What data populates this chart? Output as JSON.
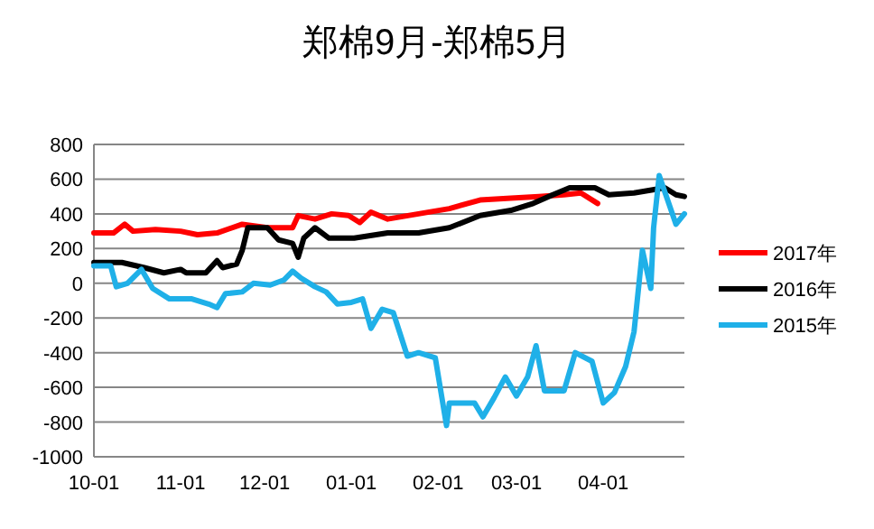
{
  "chart_data": {
    "type": "line",
    "title": "郑棉9月-郑棉5月",
    "xlim": [
      "2016-10-01",
      "2017-04-30"
    ],
    "xticks": [
      {
        "value": "2016-10-01",
        "label": "10-01"
      },
      {
        "value": "2016-11-01",
        "label": "11-01"
      },
      {
        "value": "2016-12-01",
        "label": "12-01"
      },
      {
        "value": "2017-01-01",
        "label": "01-01"
      },
      {
        "value": "2017-02-01",
        "label": "02-01"
      },
      {
        "value": "2017-03-01",
        "label": "03-01"
      },
      {
        "value": "2017-04-01",
        "label": "04-01"
      }
    ],
    "ylim": [
      -1000,
      800
    ],
    "yticks": [
      -1000,
      -800,
      -600,
      -400,
      -200,
      0,
      200,
      400,
      600,
      800
    ],
    "grid": "y",
    "legend": "right",
    "marker": "none",
    "line_style": "solid",
    "series": [
      {
        "name": "2017年",
        "color": "#ff0000",
        "x": [
          "2016-10-01",
          "2016-10-08",
          "2016-10-12",
          "2016-10-15",
          "2016-10-23",
          "2016-11-01",
          "2016-11-07",
          "2016-11-14",
          "2016-11-23",
          "2016-12-02",
          "2016-12-11",
          "2016-12-13",
          "2016-12-19",
          "2016-12-25",
          "2016-12-31",
          "2017-01-04",
          "2017-01-08",
          "2017-01-14",
          "2017-01-25",
          "2017-02-05",
          "2017-02-16",
          "2017-02-27",
          "2017-03-09",
          "2017-03-18",
          "2017-03-24",
          "2017-03-30"
        ],
        "values": [
          290,
          290,
          340,
          300,
          310,
          300,
          280,
          290,
          340,
          320,
          320,
          390,
          370,
          400,
          390,
          350,
          410,
          370,
          400,
          430,
          480,
          490,
          500,
          510,
          520,
          460
        ]
      },
      {
        "name": "2016年",
        "color": "#000000",
        "x": [
          "2016-10-01",
          "2016-10-11",
          "2016-10-19",
          "2016-10-26",
          "2016-11-01",
          "2016-11-03",
          "2016-11-10",
          "2016-11-14",
          "2016-11-16",
          "2016-11-21",
          "2016-11-23",
          "2016-11-25",
          "2016-12-02",
          "2016-12-06",
          "2016-12-11",
          "2016-12-13",
          "2016-12-15",
          "2016-12-19",
          "2016-12-24",
          "2017-01-02",
          "2017-01-14",
          "2017-01-25",
          "2017-02-05",
          "2017-02-16",
          "2017-02-27",
          "2017-03-07",
          "2017-03-14",
          "2017-03-20",
          "2017-03-29",
          "2017-04-03",
          "2017-04-12",
          "2017-04-23",
          "2017-04-27",
          "2017-04-30"
        ],
        "values": [
          120,
          120,
          90,
          60,
          80,
          60,
          60,
          130,
          90,
          110,
          190,
          320,
          320,
          250,
          230,
          150,
          260,
          320,
          260,
          260,
          290,
          290,
          320,
          390,
          420,
          460,
          510,
          550,
          550,
          510,
          520,
          550,
          510,
          500
        ]
      },
      {
        "name": "2015年",
        "color": "#1fb0e8",
        "x": [
          "2016-10-01",
          "2016-10-07",
          "2016-10-09",
          "2016-10-13",
          "2016-10-18",
          "2016-10-22",
          "2016-10-28",
          "2016-11-05",
          "2016-11-11",
          "2016-11-14",
          "2016-11-17",
          "2016-11-23",
          "2016-11-27",
          "2016-12-03",
          "2016-12-08",
          "2016-12-11",
          "2016-12-14",
          "2016-12-19",
          "2016-12-23",
          "2016-12-27",
          "2017-01-01",
          "2017-01-05",
          "2017-01-08",
          "2017-01-12",
          "2017-01-16",
          "2017-01-21",
          "2017-01-25",
          "2017-01-31",
          "2017-02-04",
          "2017-02-05",
          "2017-02-14",
          "2017-02-17",
          "2017-02-21",
          "2017-02-25",
          "2017-03-01",
          "2017-03-05",
          "2017-03-08",
          "2017-03-11",
          "2017-03-18",
          "2017-03-22",
          "2017-03-28",
          "2017-04-01",
          "2017-04-05",
          "2017-04-09",
          "2017-04-12",
          "2017-04-15",
          "2017-04-18",
          "2017-04-19",
          "2017-04-21",
          "2017-04-24",
          "2017-04-27",
          "2017-04-30"
        ],
        "values": [
          100,
          100,
          -20,
          0,
          80,
          -30,
          -90,
          -90,
          -120,
          -140,
          -60,
          -50,
          0,
          -10,
          20,
          70,
          30,
          -20,
          -50,
          -120,
          -110,
          -90,
          -260,
          -150,
          -170,
          -420,
          -400,
          -430,
          -820,
          -690,
          -690,
          -770,
          -660,
          -540,
          -650,
          -540,
          -360,
          -620,
          -620,
          -400,
          -450,
          -690,
          -630,
          -480,
          -280,
          190,
          -30,
          320,
          620,
          480,
          340,
          400
        ]
      }
    ]
  }
}
